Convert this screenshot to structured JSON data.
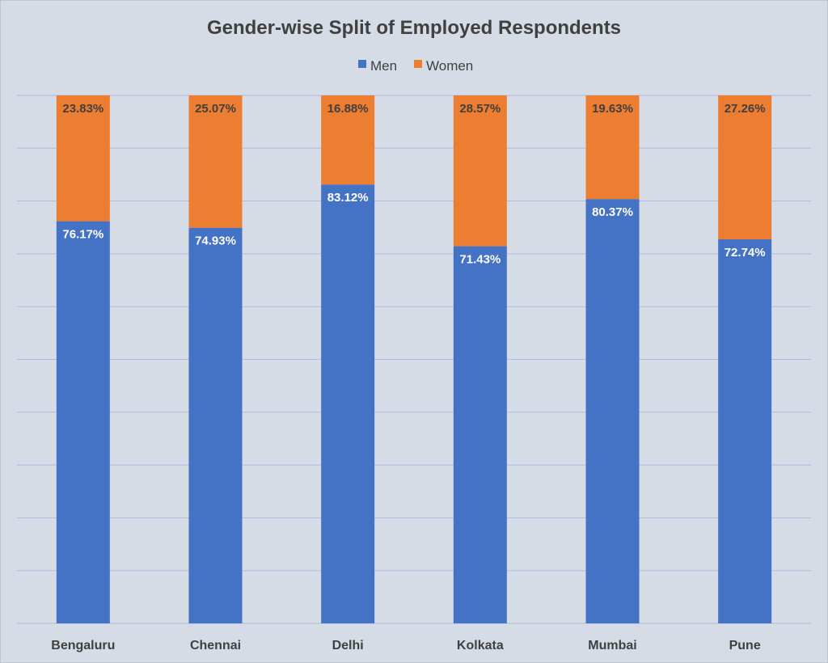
{
  "chart_data": {
    "type": "bar",
    "stacked": true,
    "title": "Gender-wise Split of Employed Respondents",
    "categories": [
      "Bengaluru",
      "Chennai",
      "Delhi",
      "Kolkata",
      "Mumbai",
      "Pune"
    ],
    "series": [
      {
        "name": "Men",
        "values": [
          76.17,
          74.93,
          83.12,
          71.43,
          80.37,
          72.74
        ],
        "labels": [
          "76.17%",
          "74.93%",
          "83.12%",
          "71.43%",
          "80.37%",
          "72.74%"
        ],
        "color": "#4472c4"
      },
      {
        "name": "Women",
        "values": [
          23.83,
          25.07,
          16.88,
          28.57,
          19.63,
          27.26
        ],
        "labels": [
          "23.83%",
          "25.07%",
          "16.88%",
          "28.57%",
          "19.63%",
          "27.26%"
        ],
        "color": "#ed7d31"
      }
    ],
    "xlabel": "",
    "ylabel": "",
    "ylim": [
      0,
      100
    ],
    "grid": true,
    "legend": "top"
  }
}
